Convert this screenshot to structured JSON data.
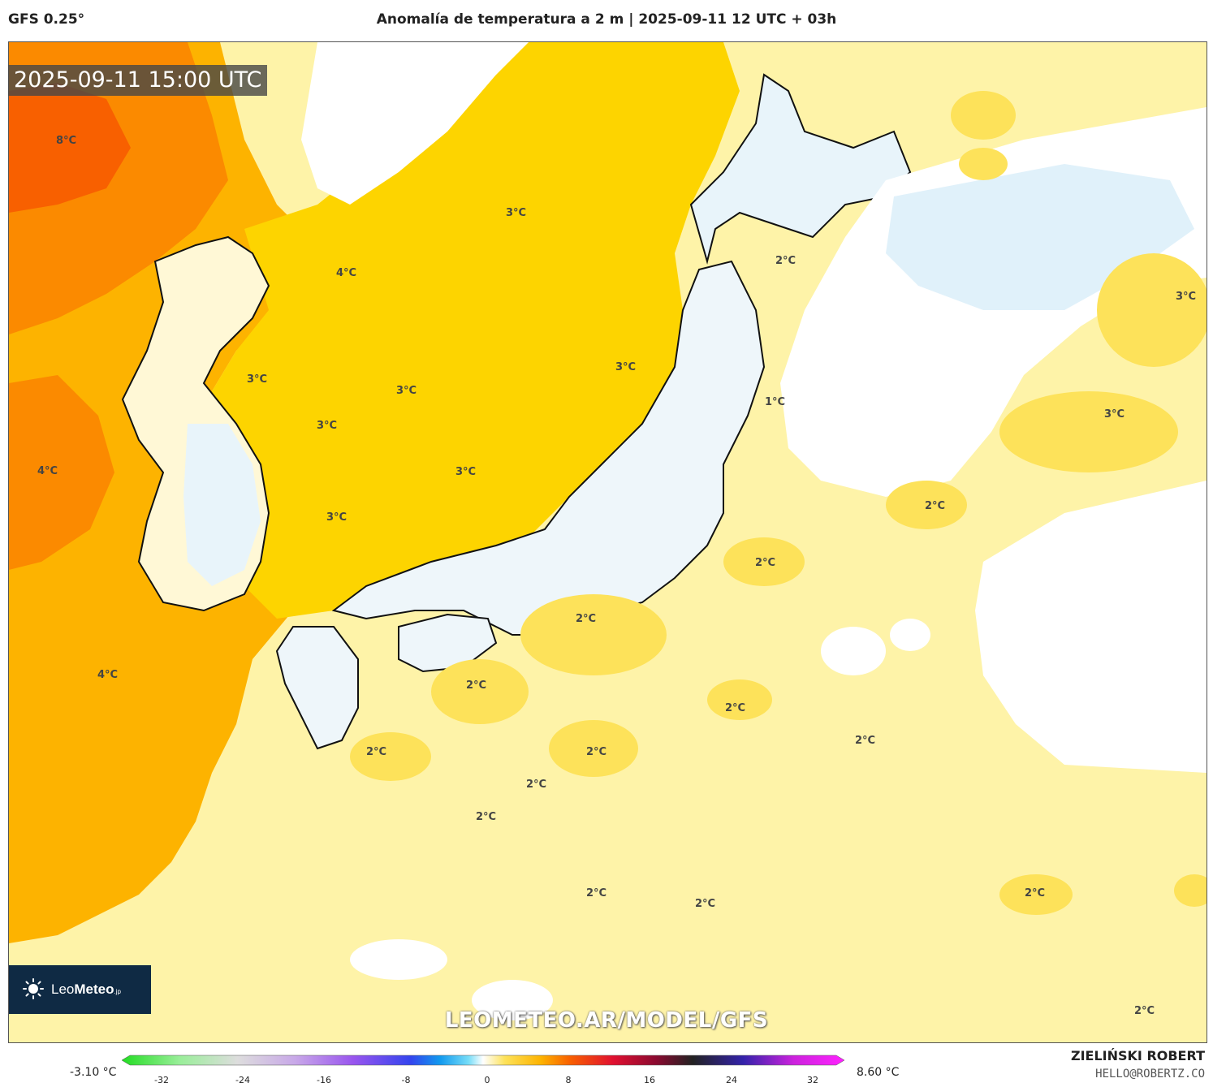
{
  "header": {
    "model": "GFS 0.25°",
    "title": "Anomalía de temperatura a 2 m | 2025-09-11 12 UTC + 03h"
  },
  "timestamp": "2025-09-11 15:00 UTC",
  "map_labels": [
    {
      "text": "8°C"
    },
    {
      "text": "3°C"
    },
    {
      "text": "4°C"
    },
    {
      "text": "2°C"
    },
    {
      "text": "3°C"
    },
    {
      "text": "3°C"
    },
    {
      "text": "3°C"
    },
    {
      "text": "3°C"
    },
    {
      "text": "1°C"
    },
    {
      "text": "3°C"
    },
    {
      "text": "4°C"
    },
    {
      "text": "3°C"
    },
    {
      "text": "3°C"
    },
    {
      "text": "3°C"
    },
    {
      "text": "2°C"
    },
    {
      "text": "2°C"
    },
    {
      "text": "4°C"
    },
    {
      "text": "2°C"
    },
    {
      "text": "2°C"
    },
    {
      "text": "2°C"
    },
    {
      "text": "2°C"
    },
    {
      "text": "2°C"
    },
    {
      "text": "2°C"
    },
    {
      "text": "2°C"
    },
    {
      "text": "2°C"
    },
    {
      "text": "2°C"
    },
    {
      "text": "2°C"
    },
    {
      "text": "2°C"
    },
    {
      "text": "2°C"
    }
  ],
  "logo": {
    "brand_light": "Leo",
    "brand_bold": "Meteo",
    "suffix": ".jp"
  },
  "watermark": "LEOMETEO.AR/MODEL/GFS",
  "colorbar": {
    "min_label": "-3.10 °C",
    "max_label": "8.60 °C",
    "ticks": [
      "-32",
      "-24",
      "-16",
      "-8",
      "0",
      "8",
      "16",
      "24",
      "32"
    ]
  },
  "credits": {
    "author": "ZIELIŃSKI ROBERT",
    "email": "HELLO@ROBERTZ.CO"
  },
  "colors": {
    "anom_0_1": "#ffffff",
    "anom_1_2": "#fef3a8",
    "anom_2_3": "#fde25a",
    "anom_3_4": "#fdd400",
    "anom_4_6": "#fdb300",
    "anom_6_8": "#fb8a00",
    "anom_8_10": "#f86000",
    "anom_neg": "#dff2fb",
    "anom_neg2": "#a8e4f8"
  }
}
